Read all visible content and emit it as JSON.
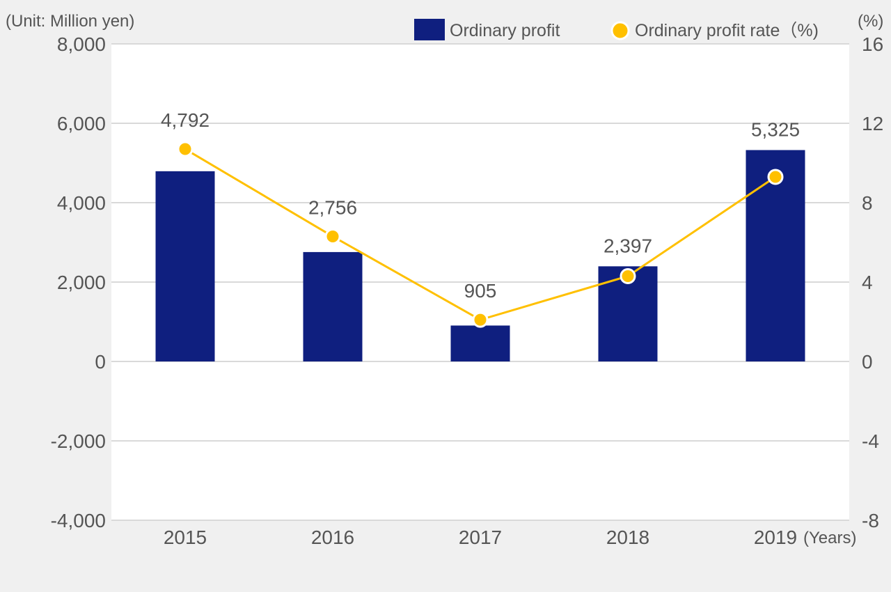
{
  "chart_data": {
    "type": "bar",
    "categories": [
      "2015",
      "2016",
      "2017",
      "2018",
      "2019"
    ],
    "series": [
      {
        "name": "Ordinary profit",
        "type": "bar",
        "axis": "left",
        "values": [
          4792,
          2756,
          905,
          2397,
          5325
        ],
        "color": "#0f1f7f"
      },
      {
        "name": "Ordinary profit rate",
        "type": "line",
        "axis": "right",
        "values": [
          10.7,
          6.3,
          2.1,
          4.3,
          9.3
        ],
        "color": "#ffc000"
      }
    ],
    "data_labels": [
      "4,792",
      "2,756",
      "905",
      "2,397",
      "5,325"
    ],
    "left_unit": "(Unit: Million yen)",
    "right_unit": "(%)",
    "x_suffix": "(Years)",
    "legend": {
      "bar_label": "Ordinary profit",
      "line_label": "Ordinary profit rate（%)",
      "placement": "top-right"
    },
    "y_left": {
      "min": -4000,
      "max": 8000,
      "ticks": [
        "8,000",
        "6,000",
        "4,000",
        "2,000",
        "0",
        "-2,000",
        "-4,000"
      ],
      "tick_values": [
        8000,
        6000,
        4000,
        2000,
        0,
        -2000,
        -4000
      ]
    },
    "y_right": {
      "min": -8,
      "max": 16,
      "ticks": [
        "16",
        "12",
        "8",
        "4",
        "0",
        "-4",
        "-8"
      ],
      "tick_values": [
        16,
        12,
        8,
        4,
        0,
        -4,
        -8
      ]
    },
    "grid": true
  }
}
